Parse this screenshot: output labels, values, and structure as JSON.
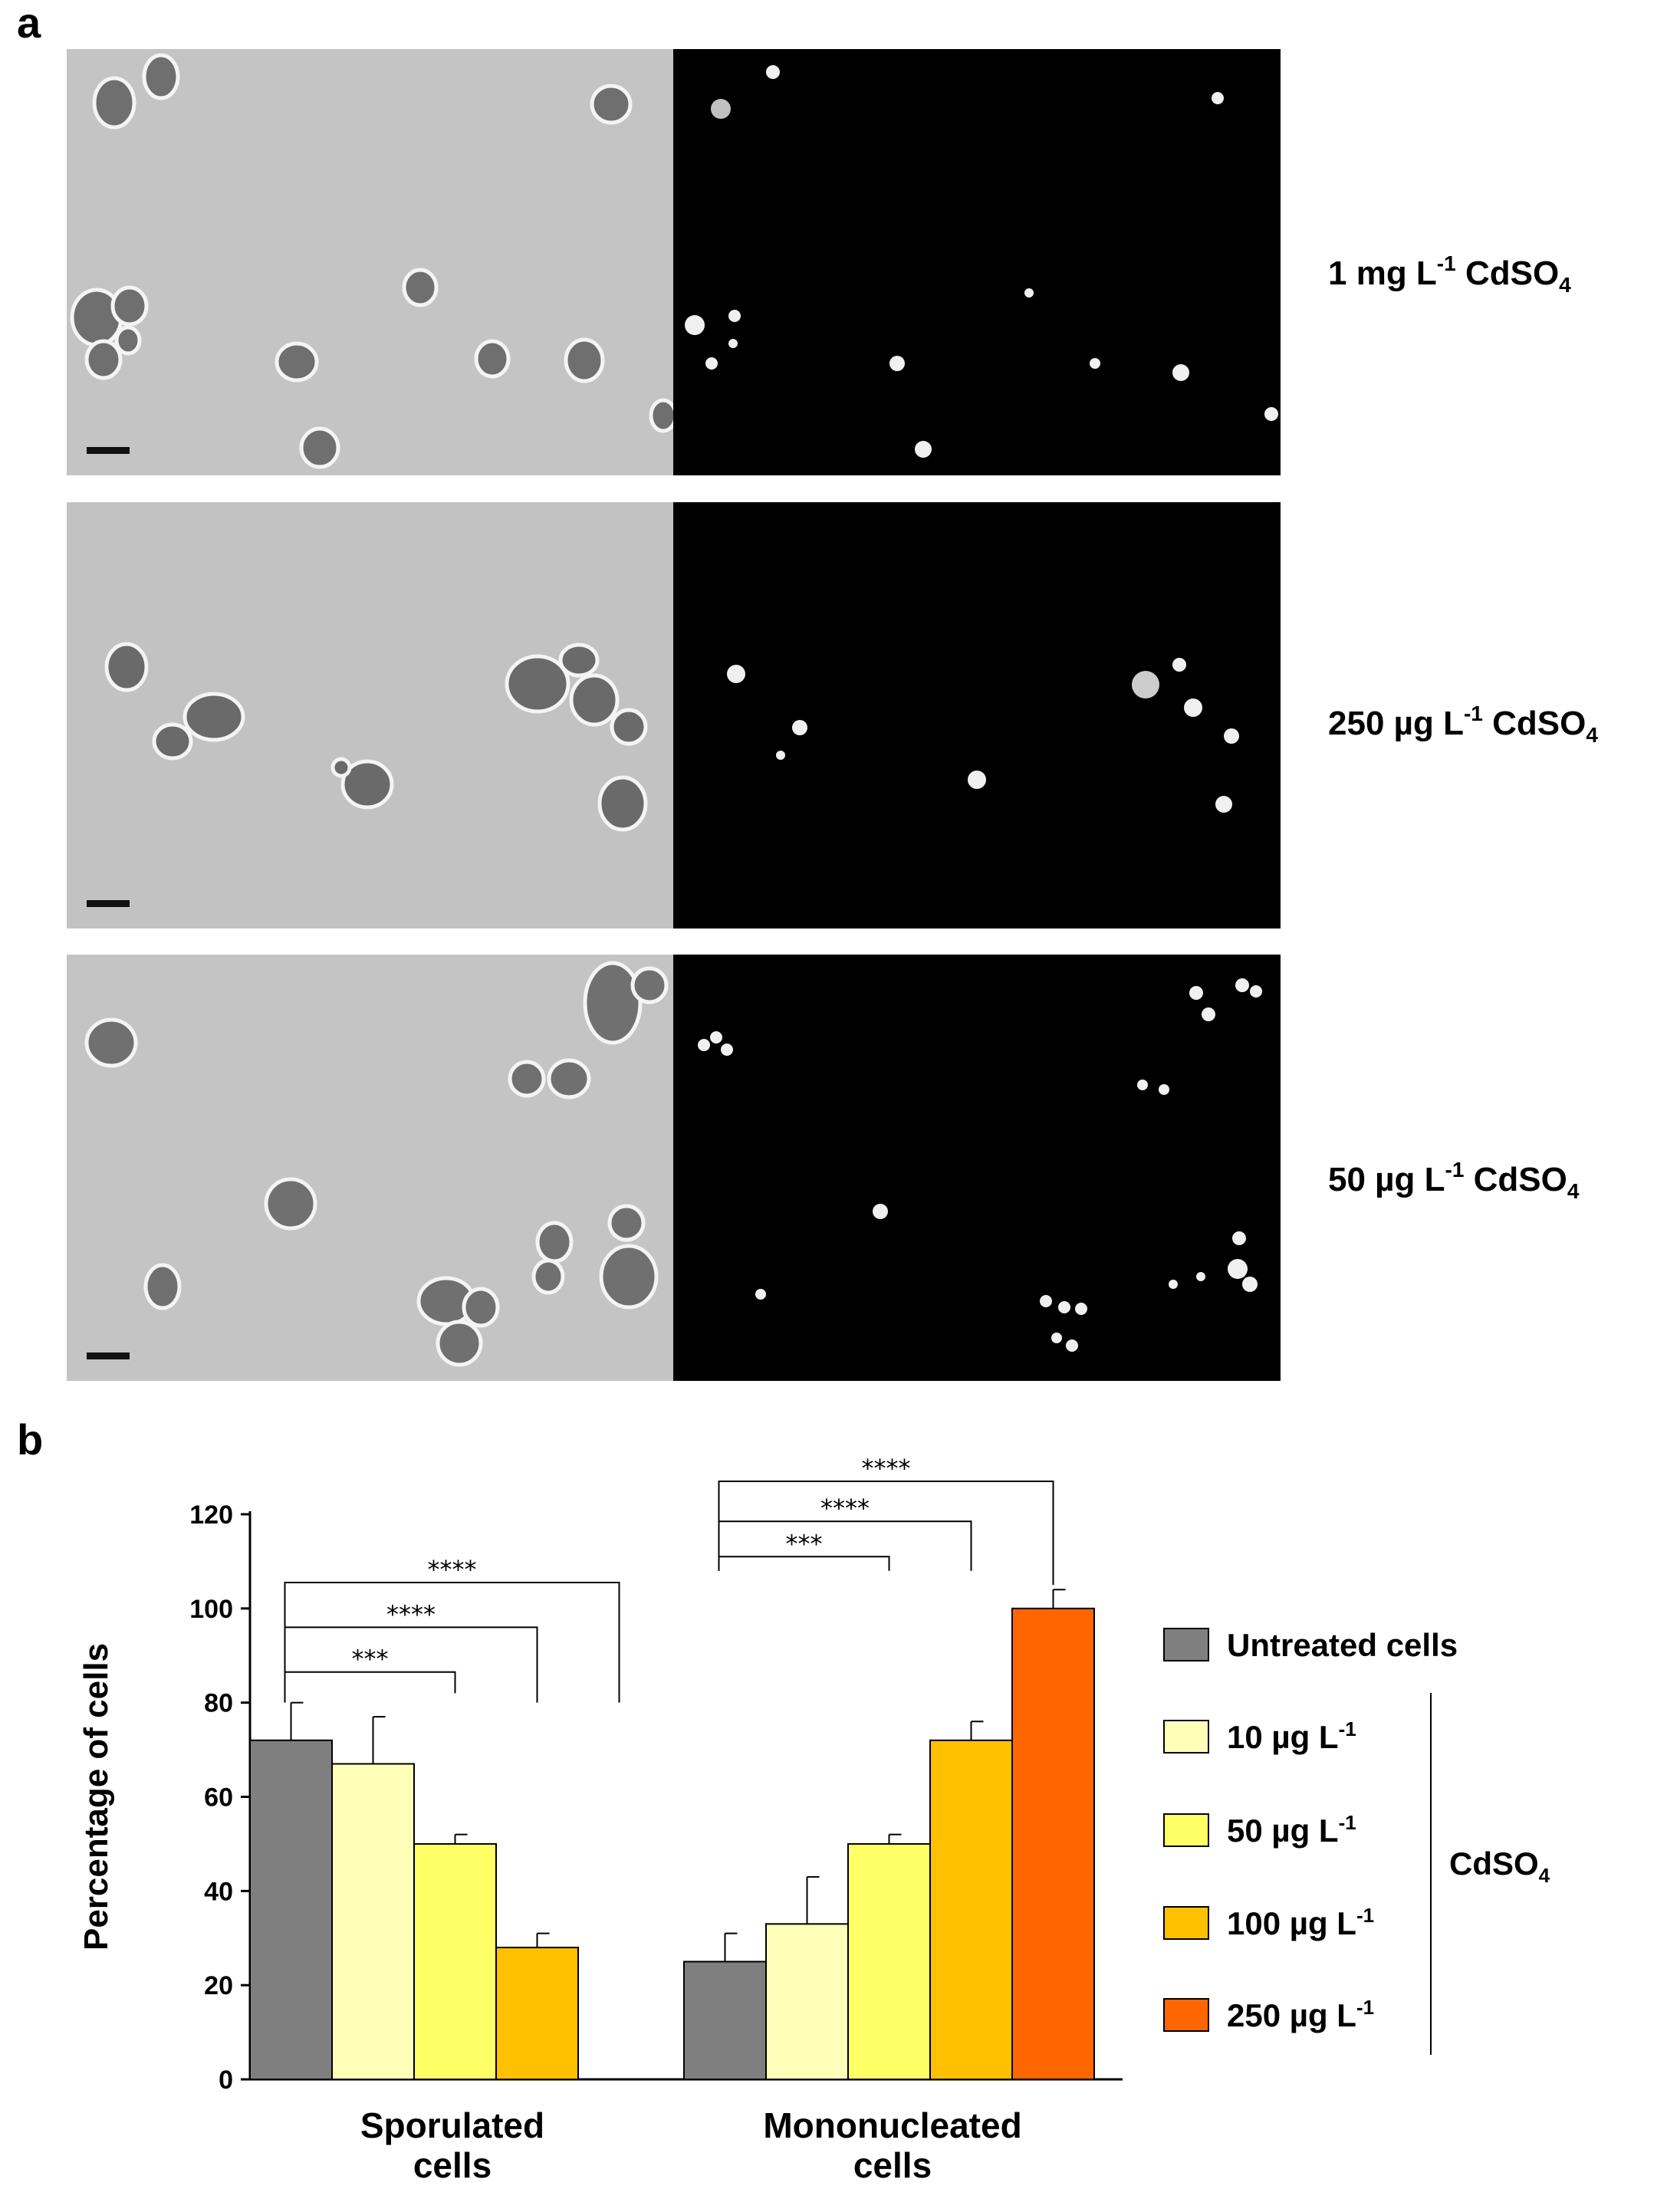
{
  "panels": {
    "a": "a",
    "b": "b"
  },
  "micrographs": [
    {
      "label": "1 mg L",
      "exp": "-1",
      "compound": "CdSO",
      "sub": "4"
    },
    {
      "label": "250 µg L",
      "exp": "-1",
      "compound": "CdSO",
      "sub": "4"
    },
    {
      "label": "50 µg L",
      "exp": "-1",
      "compound": "CdSO",
      "sub": "4"
    }
  ],
  "chart_data": {
    "type": "bar",
    "ylabel": "Percentage of cells",
    "ylim": [
      0,
      120
    ],
    "yticks": [
      0,
      20,
      40,
      60,
      80,
      100,
      120
    ],
    "categories": [
      {
        "line1": "Sporulated",
        "line2": "cells"
      },
      {
        "line1": "Mononucleated",
        "line2": "cells"
      }
    ],
    "series": [
      {
        "name": "Untreated cells",
        "color": "#7f7f7f",
        "values": [
          72,
          25
        ],
        "errors": [
          8,
          6
        ]
      },
      {
        "name": "10 µg L",
        "exp": "-1",
        "color": "#ffffb9",
        "values": [
          67,
          33
        ],
        "errors": [
          10,
          10
        ]
      },
      {
        "name": "50 µg L",
        "exp": "-1",
        "color": "#ffff66",
        "values": [
          50,
          50
        ],
        "errors": [
          2,
          2
        ]
      },
      {
        "name": "100 µg L",
        "exp": "-1",
        "color": "#ffc000",
        "values": [
          28,
          72
        ],
        "errors": [
          3,
          4
        ]
      },
      {
        "name": "250 µg L",
        "exp": "-1",
        "color": "#ff6600",
        "values": [
          null,
          100
        ],
        "errors": [
          null,
          4
        ]
      }
    ],
    "legend_group": {
      "label": "CdSO",
      "sub": "4"
    },
    "significance": [
      {
        "category": 0,
        "from": 0,
        "to": 2,
        "label": "***"
      },
      {
        "category": 0,
        "from": 0,
        "to": 3,
        "label": "****"
      },
      {
        "category": 0,
        "from": 0,
        "to": 4,
        "label": "****"
      },
      {
        "category": 1,
        "from": 0,
        "to": 2,
        "label": "***"
      },
      {
        "category": 1,
        "from": 0,
        "to": 3,
        "label": "****"
      },
      {
        "category": 1,
        "from": 0,
        "to": 4,
        "label": "****"
      }
    ],
    "legend_position": "right"
  }
}
